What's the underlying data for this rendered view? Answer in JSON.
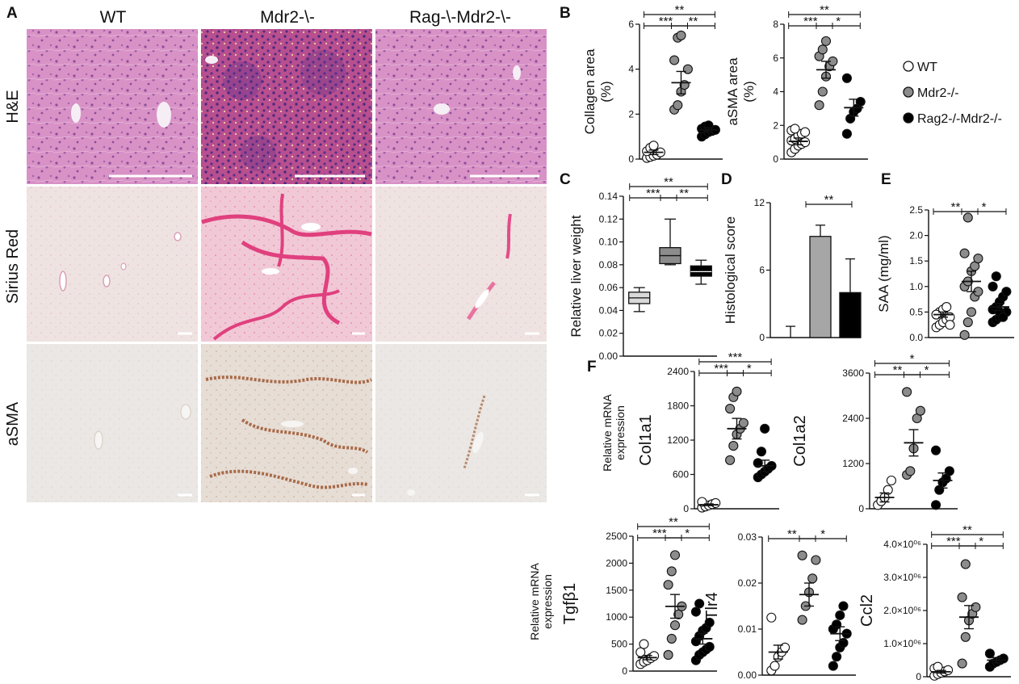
{
  "figure": {
    "panel_letters": [
      "A",
      "B",
      "C",
      "D",
      "E",
      "F"
    ],
    "columns": [
      "WT",
      "Mdr2-\\-",
      "Rag-\\-Mdr2-\\-"
    ],
    "rows": [
      "H&E",
      "Sirius Red",
      "aSMA"
    ],
    "legend": [
      {
        "label": "WT",
        "fill": "#ffffff"
      },
      {
        "label": "Mdr2-/-",
        "fill": "#8c8c8c"
      },
      {
        "label": "Rag2-/-Mdr2-/-",
        "fill": "#000000"
      }
    ],
    "shared_ylabel_F": "Relative mRNA expression",
    "colors": {
      "wt": "#ffffff",
      "mdr2": "#8c8c8c",
      "rag": "#000000",
      "he_bg": "#d98fc5",
      "he_dark": "#b5548f",
      "sirius_bg": "#ede2e0",
      "sirius_fiber": "#e0407e",
      "asma_bg": "#e9e6e3",
      "asma_stain": "#a86a48"
    }
  },
  "chart_data": [
    {
      "id": "B1",
      "panel": "B",
      "type": "scatter",
      "ylabel": "Collagen area (%)",
      "ylim": [
        0,
        6
      ],
      "yticks": [
        "0",
        "2",
        "4",
        "6"
      ],
      "groups": [
        {
          "name": "WT",
          "points": [
            0.05,
            0.1,
            0.15,
            0.2,
            0.3,
            0.35,
            0.5,
            0.6
          ],
          "mean": 0.3,
          "sem": 0.1
        },
        {
          "name": "Mdr2-/-",
          "points": [
            2.2,
            2.4,
            3.0,
            3.3,
            4.0,
            4.4,
            5.4,
            5.5
          ],
          "mean": 3.4,
          "sem": 0.5
        },
        {
          "name": "Rag2-/-Mdr2-/-",
          "points": [
            1.0,
            1.1,
            1.2,
            1.25,
            1.3,
            1.35,
            1.45,
            1.5
          ],
          "mean": 1.3,
          "sem": 0.1
        }
      ],
      "significance": [
        [
          "***",
          0,
          1
        ],
        [
          "**",
          0,
          2
        ],
        [
          "**",
          1,
          2
        ]
      ]
    },
    {
      "id": "B2",
      "panel": "B",
      "type": "scatter",
      "ylabel": "aSMA area (%)",
      "ylim": [
        0,
        8
      ],
      "yticks": [
        "0",
        "2",
        "4",
        "6",
        "8"
      ],
      "groups": [
        {
          "name": "WT",
          "points": [
            0.4,
            0.6,
            0.8,
            0.9,
            1.0,
            1.1,
            1.2,
            1.4,
            1.5,
            1.6,
            1.7,
            1.8
          ],
          "mean": 1.05,
          "sem": 0.2
        },
        {
          "name": "Mdr2-/-",
          "points": [
            3.2,
            4.0,
            4.9,
            5.5,
            5.8,
            6.1,
            6.5,
            7.0
          ],
          "mean": 5.3,
          "sem": 0.5
        },
        {
          "name": "Rag2-/-Mdr2-/-",
          "points": [
            1.5,
            2.4,
            2.8,
            3.0,
            3.4,
            4.8
          ],
          "mean": 3.05,
          "sem": 0.5
        }
      ],
      "significance": [
        [
          "***",
          0,
          1
        ],
        [
          "**",
          0,
          2
        ],
        [
          "*",
          1,
          2
        ]
      ]
    },
    {
      "id": "C",
      "panel": "C",
      "type": "box",
      "ylabel": "Relative liver weight",
      "ylim": [
        0,
        0.14
      ],
      "yticks": [
        "0.00",
        "0.02",
        "0.04",
        "0.06",
        "0.08",
        "0.10",
        "0.12",
        "0.14"
      ],
      "groups": [
        {
          "name": "WT",
          "min": 0.039,
          "q1": 0.046,
          "median": 0.051,
          "q3": 0.056,
          "max": 0.06
        },
        {
          "name": "Mdr2-/-",
          "min": 0.08,
          "q1": 0.081,
          "median": 0.088,
          "q3": 0.095,
          "max": 0.12
        },
        {
          "name": "Rag2-/-Mdr2-/-",
          "min": 0.063,
          "q1": 0.07,
          "median": 0.074,
          "q3": 0.079,
          "max": 0.084
        }
      ],
      "significance": [
        [
          "***",
          0,
          1
        ],
        [
          "**",
          0,
          2
        ],
        [
          "**",
          1,
          2
        ]
      ]
    },
    {
      "id": "D",
      "panel": "D",
      "type": "bar",
      "ylabel": "Histological score",
      "ylim": [
        0,
        12
      ],
      "yticks": [
        "0",
        "6",
        "12"
      ],
      "groups": [
        {
          "name": "WT",
          "value": 0,
          "err": 1
        },
        {
          "name": "Mdr2-/-",
          "value": 9,
          "err": 1
        },
        {
          "name": "Rag2-/-Mdr2-/-",
          "value": 4,
          "err": 3
        }
      ],
      "significance": [
        [
          "**",
          1,
          2
        ]
      ]
    },
    {
      "id": "E",
      "panel": "E",
      "type": "scatter",
      "ylabel": "SAA (mg/ml)",
      "ylim": [
        0,
        2.5
      ],
      "yticks": [
        "0.0",
        "0.5",
        "1.0",
        "1.5",
        "2.0",
        "2.5"
      ],
      "groups": [
        {
          "name": "WT",
          "points": [
            0.2,
            0.25,
            0.3,
            0.35,
            0.4,
            0.45,
            0.5,
            0.55,
            0.6,
            0.25,
            0.45
          ],
          "mean": 0.45,
          "sem": 0.05
        },
        {
          "name": "Mdr2-/-",
          "points": [
            0.05,
            0.3,
            0.5,
            0.8,
            0.9,
            1.0,
            1.1,
            1.3,
            1.4,
            1.55,
            1.65,
            2.35
          ],
          "mean": 1.1,
          "sem": 0.2
        },
        {
          "name": "Rag2-/-Mdr2-/-",
          "points": [
            0.3,
            0.35,
            0.4,
            0.45,
            0.5,
            0.55,
            0.6,
            0.7,
            0.8,
            0.9,
            1.0,
            1.2,
            0.5,
            0.4
          ],
          "mean": 0.6,
          "sem": 0.07
        }
      ],
      "significance": [
        [
          "**",
          0,
          1
        ],
        [
          "*",
          1,
          2
        ]
      ]
    },
    {
      "id": "F1",
      "panel": "F",
      "type": "scatter",
      "ylabel": "Col1a1",
      "ylim": [
        0,
        2400
      ],
      "yticks": [
        "0",
        "600",
        "1200",
        "1800",
        "2400"
      ],
      "groups": [
        {
          "name": "WT",
          "points": [
            20,
            40,
            60,
            80,
            100,
            120
          ],
          "mean": 70,
          "sem": 15
        },
        {
          "name": "Mdr2-/-",
          "points": [
            850,
            1100,
            1300,
            1400,
            1500,
            1750,
            1950,
            2050
          ],
          "mean": 1400,
          "sem": 180
        },
        {
          "name": "Rag2-/-Mdr2-/-",
          "points": [
            550,
            600,
            650,
            700,
            750,
            800,
            1000,
            1400
          ],
          "mean": 750,
          "sem": 100
        }
      ],
      "significance": [
        [
          "***",
          0,
          1
        ],
        [
          "***",
          0,
          2
        ],
        [
          "*",
          1,
          2
        ]
      ]
    },
    {
      "id": "F2",
      "panel": "F",
      "type": "scatter",
      "ylabel": "Col1a2",
      "ylim": [
        0,
        3600
      ],
      "yticks": [
        "0",
        "1200",
        "2400",
        "3600"
      ],
      "groups": [
        {
          "name": "WT",
          "points": [
            100,
            200,
            300,
            500,
            750
          ],
          "mean": 300,
          "sem": 120
        },
        {
          "name": "Mdr2-/-",
          "points": [
            900,
            1000,
            1600,
            2400,
            2600,
            3100
          ],
          "mean": 1750,
          "sem": 350
        },
        {
          "name": "Rag2-/-Mdr2-/-",
          "points": [
            100,
            500,
            700,
            800,
            1000,
            1550
          ],
          "mean": 750,
          "sem": 200
        }
      ],
      "significance": [
        [
          "**",
          0,
          1
        ],
        [
          "*",
          0,
          2
        ],
        [
          "*",
          1,
          2
        ]
      ]
    },
    {
      "id": "F3",
      "panel": "F",
      "type": "scatter",
      "ylabel": "Tgfβ1",
      "ylim": [
        0,
        2500
      ],
      "yticks": [
        "0",
        "500",
        "1000",
        "1500",
        "2000",
        "2500"
      ],
      "groups": [
        {
          "name": "WT",
          "points": [
            130,
            170,
            200,
            240,
            280,
            350,
            500
          ],
          "mean": 250,
          "sem": 40
        },
        {
          "name": "Mdr2-/-",
          "points": [
            300,
            600,
            850,
            1050,
            1200,
            1600,
            1850,
            2150
          ],
          "mean": 1200,
          "sem": 220
        },
        {
          "name": "Rag2-/-Mdr2-/-",
          "points": [
            200,
            300,
            350,
            400,
            450,
            550,
            650,
            750,
            800,
            900,
            1100,
            1250
          ],
          "mean": 600,
          "sem": 100
        }
      ],
      "significance": [
        [
          "***",
          0,
          1
        ],
        [
          "**",
          0,
          2
        ],
        [
          "*",
          1,
          2
        ]
      ]
    },
    {
      "id": "F4",
      "panel": "F",
      "type": "scatter",
      "ylabel": "Tlr4",
      "ylim": [
        0,
        0.03
      ],
      "yticks": [
        "0.00",
        "0.01",
        "0.02",
        "0.03"
      ],
      "groups": [
        {
          "name": "WT",
          "points": [
            0.001,
            0.002,
            0.004,
            0.005,
            0.006,
            0.0125
          ],
          "mean": 0.005,
          "sem": 0.0015
        },
        {
          "name": "Mdr2-/-",
          "points": [
            0.012,
            0.015,
            0.018,
            0.021,
            0.025,
            0.026
          ],
          "mean": 0.0175,
          "sem": 0.0025
        },
        {
          "name": "Rag2-/-Mdr2-/-",
          "points": [
            0.002,
            0.004,
            0.006,
            0.007,
            0.009,
            0.01,
            0.011,
            0.013,
            0.015
          ],
          "mean": 0.009,
          "sem": 0.0015
        }
      ],
      "significance": [
        [
          "**",
          0,
          1
        ],
        [
          "*",
          1,
          2
        ]
      ]
    },
    {
      "id": "F5",
      "panel": "F",
      "type": "scatter",
      "ylabel": "Ccl2",
      "ylim": [
        0,
        4000000
      ],
      "yticks": [
        "0",
        "1.0×10⁰⁶",
        "2.0×10⁰⁶",
        "3.0×10⁰⁶",
        "4.0×10⁰⁶"
      ],
      "groups": [
        {
          "name": "WT",
          "points": [
            30000,
            80000,
            120000,
            160000,
            200000,
            250000,
            300000
          ],
          "mean": 150000,
          "sem": 40000
        },
        {
          "name": "Mdr2-/-",
          "points": [
            400000,
            1200000,
            1700000,
            1900000,
            2100000,
            2400000,
            3400000
          ],
          "mean": 1800000,
          "sem": 350000
        },
        {
          "name": "Rag2-/-Mdr2-/-",
          "points": [
            300000,
            400000,
            450000,
            500000,
            550000,
            700000
          ],
          "mean": 500000,
          "sem": 80000
        }
      ],
      "significance": [
        [
          "***",
          0,
          1
        ],
        [
          "**",
          0,
          2
        ],
        [
          "*",
          1,
          2
        ]
      ]
    }
  ]
}
